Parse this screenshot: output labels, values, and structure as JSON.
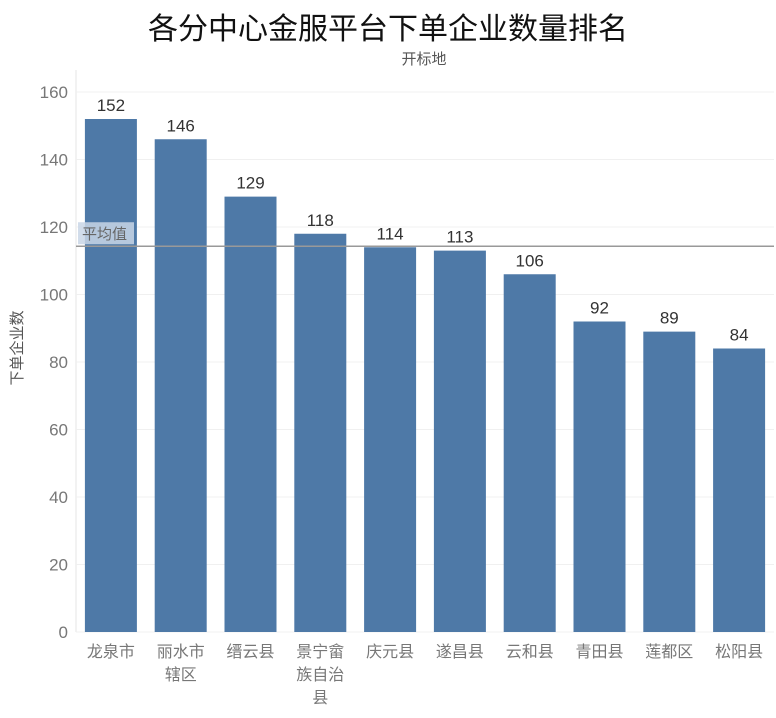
{
  "chart_data": {
    "type": "bar",
    "title": "各分中心金服平台下单企业数量排名",
    "xlabel": "开标地",
    "ylabel": "下单企业数",
    "categories": [
      "龙泉市",
      "丽水市辖区",
      "缙云县",
      "景宁畲族自治县",
      "庆元县",
      "遂昌县",
      "云和县",
      "青田县",
      "莲都区",
      "松阳县"
    ],
    "category_lines": [
      [
        "龙泉市"
      ],
      [
        "丽水市",
        "辖区"
      ],
      [
        "缙云县"
      ],
      [
        "景宁畲",
        "族自治",
        "县"
      ],
      [
        "庆元县"
      ],
      [
        "遂昌县"
      ],
      [
        "云和县"
      ],
      [
        "青田县"
      ],
      [
        "莲都区"
      ],
      [
        "松阳县"
      ]
    ],
    "values": [
      152,
      146,
      129,
      118,
      114,
      113,
      106,
      92,
      89,
      84
    ],
    "ylim": [
      0,
      160
    ],
    "yticks": [
      0,
      20,
      40,
      60,
      80,
      100,
      120,
      140,
      160
    ],
    "reference_line": {
      "label": "平均值",
      "value": 114.3
    },
    "grid": true,
    "colors": {
      "bar": "#4e79a7",
      "reference_line": "#999999",
      "reference_label_bg": "#c9d6e6",
      "grid": "#f0f0f0"
    }
  }
}
